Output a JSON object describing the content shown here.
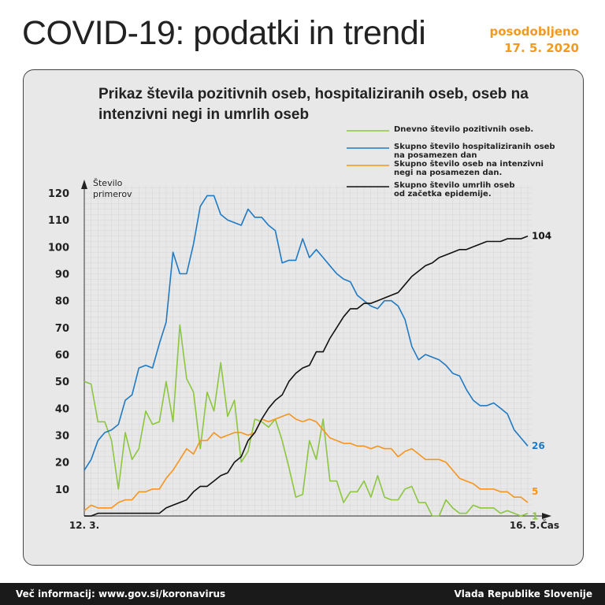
{
  "header": {
    "title": "COVID-19: podatki in trendi",
    "updated_label": "posodobljeno",
    "updated_date": "17. 5. 2020"
  },
  "footer": {
    "left": "Več informacij: www.gov.si/koronavirus",
    "right": "Vlada Republike Slovenije"
  },
  "chart_data": {
    "type": "line",
    "title": "Prikaz števila pozitivnih oseb, hospitaliziranih oseb, oseb na intenzivni negi in umrlih oseb",
    "ylabel": [
      "Število",
      "primerov"
    ],
    "xlabel": "Čas",
    "x_start": "12. 3.",
    "x_end": "16. 5.",
    "ylim": [
      0,
      120
    ],
    "yticks": [
      10,
      20,
      30,
      40,
      50,
      60,
      70,
      80,
      90,
      100,
      110,
      120
    ],
    "grid": true,
    "legend_position": "top-right",
    "series": [
      {
        "name": "Dnevno število pozitivnih oseb.",
        "color": "#8cc63f",
        "end_label": "1",
        "values": [
          50,
          49,
          35,
          35,
          28,
          10,
          31,
          21,
          25,
          39,
          34,
          35,
          50,
          35,
          71,
          51,
          46,
          25,
          46,
          39,
          57,
          37,
          43,
          20,
          24,
          36,
          35,
          33,
          36,
          28,
          18,
          7,
          8,
          28,
          21,
          36,
          13,
          13,
          5,
          9,
          9,
          13,
          7,
          15,
          7,
          6,
          6,
          10,
          11,
          5,
          5,
          0,
          0,
          6,
          3,
          1,
          1,
          4,
          3,
          3,
          3,
          1,
          2,
          1,
          0,
          1
        ]
      },
      {
        "name": "Skupno število hospitaliziranih oseb na posamezen dan",
        "color": "#1f7ac4",
        "end_label": "26",
        "values": [
          17,
          21,
          28,
          31,
          32,
          34,
          43,
          45,
          55,
          56,
          55,
          64,
          72,
          98,
          90,
          90,
          101,
          115,
          119,
          119,
          112,
          110,
          109,
          108,
          114,
          111,
          111,
          108,
          106,
          94,
          95,
          95,
          103,
          96,
          99,
          96,
          93,
          90,
          88,
          87,
          82,
          80,
          78,
          77,
          80,
          80,
          78,
          73,
          63,
          58,
          60,
          59,
          58,
          56,
          53,
          52,
          47,
          43,
          41,
          41,
          42,
          40,
          38,
          32,
          29,
          26
        ]
      },
      {
        "name": "Skupno število oseb na intenzivni negi na posamezen dan.",
        "color": "#f7941d",
        "end_label": "5",
        "values": [
          2,
          4,
          3,
          3,
          3,
          5,
          6,
          6,
          9,
          9,
          10,
          10,
          14,
          17,
          21,
          25,
          23,
          28,
          28,
          31,
          29,
          30,
          31,
          31,
          30,
          31,
          36,
          35,
          36,
          37,
          38,
          36,
          35,
          36,
          35,
          32,
          29,
          28,
          27,
          27,
          26,
          26,
          25,
          26,
          25,
          25,
          22,
          24,
          25,
          23,
          21,
          21,
          21,
          20,
          17,
          14,
          13,
          12,
          10,
          10,
          10,
          9,
          9,
          7,
          7,
          5
        ]
      },
      {
        "name": "Skupno število umrlih oseb od začetka epidemije.",
        "color": "#111111",
        "end_label": "104",
        "values": [
          0,
          0,
          1,
          1,
          1,
          1,
          1,
          1,
          1,
          1,
          1,
          1,
          3,
          4,
          5,
          6,
          9,
          11,
          11,
          13,
          15,
          16,
          20,
          22,
          28,
          31,
          36,
          40,
          43,
          45,
          50,
          53,
          55,
          56,
          61,
          61,
          66,
          70,
          74,
          77,
          77,
          79,
          79,
          80,
          81,
          82,
          83,
          86,
          89,
          91,
          93,
          94,
          96,
          97,
          98,
          99,
          99,
          100,
          101,
          102,
          102,
          102,
          103,
          103,
          103,
          104
        ]
      }
    ]
  }
}
